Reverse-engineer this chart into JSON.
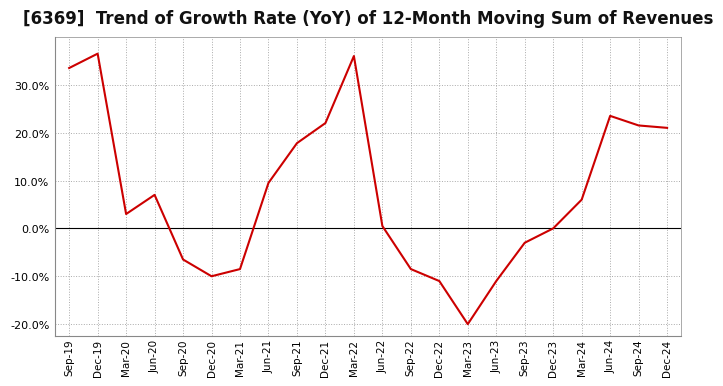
{
  "title": "[6369]  Trend of Growth Rate (YoY) of 12-Month Moving Sum of Revenues",
  "title_fontsize": 12,
  "line_color": "#cc0000",
  "background_color": "#ffffff",
  "plot_bg_color": "#ffffff",
  "grid_color": "#aaaaaa",
  "ylim": [
    -0.225,
    0.4
  ],
  "yticks": [
    -0.2,
    -0.1,
    0.0,
    0.1,
    0.2,
    0.3
  ],
  "x_labels": [
    "Sep-19",
    "Dec-19",
    "Mar-20",
    "Jun-20",
    "Sep-20",
    "Dec-20",
    "Mar-21",
    "Jun-21",
    "Sep-21",
    "Dec-21",
    "Mar-22",
    "Jun-22",
    "Sep-22",
    "Dec-22",
    "Mar-23",
    "Jun-23",
    "Sep-23",
    "Dec-23",
    "Mar-24",
    "Jun-24",
    "Sep-24",
    "Dec-24"
  ],
  "data": [
    0.335,
    0.365,
    0.03,
    0.07,
    -0.065,
    -0.1,
    -0.085,
    0.095,
    0.178,
    0.22,
    0.36,
    0.005,
    -0.085,
    -0.11,
    -0.2,
    -0.11,
    -0.03,
    0.0,
    0.06,
    0.235,
    0.215,
    0.21
  ]
}
